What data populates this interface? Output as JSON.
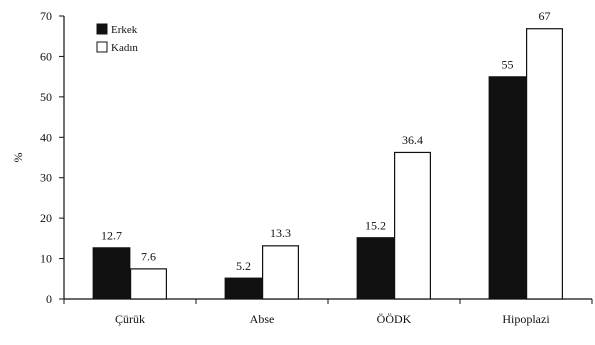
{
  "chart_data": {
    "type": "bar",
    "title": "",
    "xlabel": "",
    "ylabel": "%",
    "ylim": [
      0,
      70
    ],
    "yticks": [
      0,
      10,
      20,
      30,
      40,
      50,
      60,
      70
    ],
    "categories": [
      "Çürük",
      "Abse",
      "ÖÖDK",
      "Hipoplazi"
    ],
    "series": [
      {
        "name": "Erkek",
        "values": [
          12.7,
          5.2,
          15.2,
          55
        ],
        "labels": [
          "12.7",
          "5.2",
          "15.2",
          "55"
        ],
        "color": "#111111",
        "fill": "solid"
      },
      {
        "name": "Kadın",
        "values": [
          7.6,
          13.3,
          36.4,
          67
        ],
        "labels": [
          "7.6",
          "13.3",
          "36.4",
          "67"
        ],
        "color": "#ffffff",
        "fill": "outline"
      }
    ],
    "grid": false,
    "legend_position": "top-left"
  }
}
